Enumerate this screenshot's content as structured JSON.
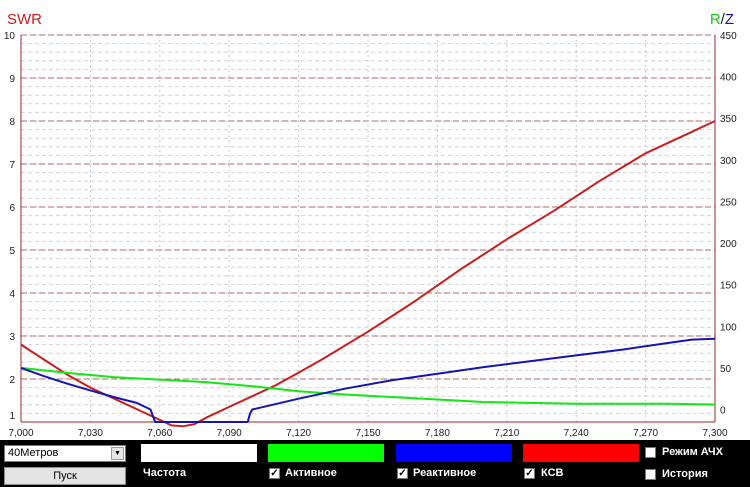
{
  "chart_data": {
    "type": "line",
    "left_axis_label": "SWR",
    "right_axis_label_r": "R",
    "right_axis_label_sep": "/",
    "right_axis_label_z": "Z",
    "left_ylim": [
      1,
      10
    ],
    "left_ticks": [
      "1",
      "2",
      "3",
      "4",
      "5",
      "6",
      "7",
      "8",
      "9",
      "10"
    ],
    "right_ylim": [
      -15,
      450
    ],
    "right_ticks": [
      "0",
      "50",
      "100",
      "150",
      "200",
      "250",
      "300",
      "350",
      "400",
      "450"
    ],
    "xlim": [
      7.0,
      7.3
    ],
    "x_ticks": [
      "7,000",
      "7,030",
      "7,060",
      "7,090",
      "7,120",
      "7,150",
      "7,180",
      "7,210",
      "7,240",
      "7,270",
      "7,300"
    ],
    "grid": true,
    "series": [
      {
        "axis": "left",
        "color": "#c81e1e",
        "x": [
          7.0,
          7.01,
          7.02,
          7.03,
          7.04,
          7.05,
          7.06,
          7.065,
          7.07,
          7.075,
          7.08,
          7.09,
          7.1,
          7.11,
          7.12,
          7.13,
          7.15,
          7.17,
          7.19,
          7.21,
          7.23,
          7.25,
          7.27,
          7.29,
          7.3
        ],
        "values": [
          2.8,
          2.45,
          2.1,
          1.8,
          1.55,
          1.3,
          1.05,
          0.92,
          0.9,
          0.95,
          1.1,
          1.35,
          1.6,
          1.85,
          2.15,
          2.45,
          3.1,
          3.8,
          4.55,
          5.25,
          5.9,
          6.6,
          7.25,
          7.75,
          8.0
        ]
      },
      {
        "axis": "right",
        "color": "#14e614",
        "x": [
          7.0,
          7.02,
          7.04,
          7.06,
          7.08,
          7.1,
          7.12,
          7.14,
          7.16,
          7.18,
          7.2,
          7.22,
          7.24,
          7.26,
          7.28,
          7.3
        ],
        "values": [
          50,
          44,
          39,
          36,
          33,
          28,
          22,
          18,
          15,
          12,
          9,
          8,
          7,
          7,
          7,
          6
        ]
      },
      {
        "axis": "right",
        "color": "#1414b4",
        "x": [
          7.0,
          7.01,
          7.02,
          7.03,
          7.04,
          7.05,
          7.056,
          7.058,
          7.066,
          7.098,
          7.099,
          7.1,
          7.12,
          7.14,
          7.16,
          7.18,
          7.2,
          7.22,
          7.24,
          7.26,
          7.28,
          7.29,
          7.3
        ],
        "values": [
          50,
          40,
          31,
          23,
          15,
          8,
          0,
          -15,
          -15,
          -15,
          -5,
          0,
          13,
          25,
          35,
          43,
          51,
          58,
          65,
          72,
          80,
          84,
          85
        ]
      }
    ]
  },
  "band_select": {
    "value": "40Метров"
  },
  "start_button": {
    "label": "Пуск"
  },
  "freq_label": "Частота",
  "active_label": "Активное",
  "reactive_label": "Реактивное",
  "swr_label": "КСВ",
  "afc_label": "Режим АЧХ",
  "history_label": "История",
  "colors": {
    "freq": "#ffffff",
    "active": "#00ff00",
    "reactive": "#0000ff",
    "swr": "#ff0000"
  }
}
